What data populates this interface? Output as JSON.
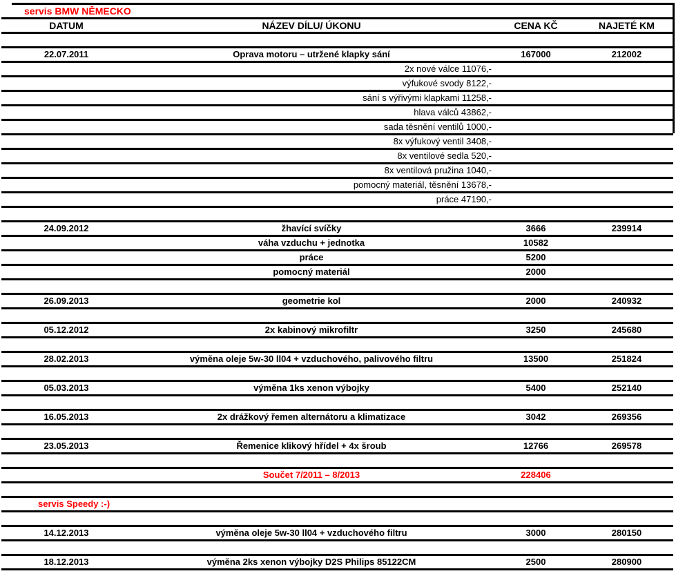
{
  "colors": {
    "background": "#ffffff",
    "text": "#000000",
    "line": "#000000",
    "accent_red": "#ff0000"
  },
  "rows": [
    {
      "type": "title",
      "text": "servis BMW NĚMECKO"
    },
    {
      "type": "header",
      "cells": [
        "DATUM",
        "NÁZEV DÍLU/ ÚKONU",
        "CENA KČ",
        "NAJETÉ KM"
      ]
    },
    {
      "type": "spacer"
    },
    {
      "type": "item",
      "datum": "22.07.2011",
      "nazev": "Oprava motoru – utržené klapky sání",
      "cena": "167000",
      "km": "212002"
    },
    {
      "type": "detail",
      "text": "2x nové válce 11076,-"
    },
    {
      "type": "detail",
      "text": "výfukové svody 8122,-"
    },
    {
      "type": "detail",
      "text": "sání s výřivými klapkami 11258,-"
    },
    {
      "type": "detail",
      "text": "hlava válců 43862,-"
    },
    {
      "type": "detail",
      "text": "sada těsnění ventilů 1000,-"
    },
    {
      "type": "detail",
      "text": "8x výfukový ventil 3408,-"
    },
    {
      "type": "detail",
      "text": "8x ventilové sedla 520,-"
    },
    {
      "type": "detail",
      "text": "8x ventilová pružina 1040,-"
    },
    {
      "type": "detail",
      "text": "pomocný materiál, těsnění 13678,-"
    },
    {
      "type": "detail",
      "text": "práce 47190,-"
    },
    {
      "type": "spacer"
    },
    {
      "type": "item",
      "datum": "24.09.2012",
      "nazev": "žhavící svíčky",
      "cena": "3666",
      "km": "239914"
    },
    {
      "type": "item",
      "datum": "",
      "nazev": "váha vzduchu + jednotka",
      "cena": "10582",
      "km": ""
    },
    {
      "type": "item",
      "datum": "",
      "nazev": "práce",
      "cena": "5200",
      "km": ""
    },
    {
      "type": "item",
      "datum": "",
      "nazev": "pomocný materiál",
      "cena": "2000",
      "km": ""
    },
    {
      "type": "spacer"
    },
    {
      "type": "item",
      "datum": "26.09.2013",
      "nazev": "geometrie kol",
      "cena": "2000",
      "km": "240932"
    },
    {
      "type": "spacer"
    },
    {
      "type": "item",
      "datum": "05.12.2012",
      "nazev": "2x kabinový mikrofiltr",
      "cena": "3250",
      "km": "245680"
    },
    {
      "type": "spacer"
    },
    {
      "type": "item",
      "datum": "28.02.2013",
      "nazev": "výměna oleje 5w-30 ll04 + vzduchového, palivového filtru",
      "cena": "13500",
      "km": "251824"
    },
    {
      "type": "spacer"
    },
    {
      "type": "item",
      "datum": "05.03.2013",
      "nazev": "výměna 1ks xenon výbojky",
      "cena": "5400",
      "km": "252140"
    },
    {
      "type": "spacer"
    },
    {
      "type": "item",
      "datum": "16.05.2013",
      "nazev": "2x drážkový řemen alternátoru a klimatizace",
      "cena": "3042",
      "km": "269356"
    },
    {
      "type": "spacer"
    },
    {
      "type": "item",
      "datum": "23.05.2013",
      "nazev": "Řemenice klikový hřídel + 4x šroub",
      "cena": "12766",
      "km": "269578"
    },
    {
      "type": "spacer"
    },
    {
      "type": "total",
      "nazev": "Součet 7/2011 – 8/2013",
      "cena": "228406"
    },
    {
      "type": "spacer"
    },
    {
      "type": "subtitle",
      "text": "servis Speedy :-)"
    },
    {
      "type": "spacer"
    },
    {
      "type": "item",
      "datum": "14.12.2013",
      "nazev": "výměna oleje 5w-30 ll04 + vzduchového filtru",
      "cena": "3000",
      "km": "280150"
    },
    {
      "type": "spacer"
    },
    {
      "type": "item",
      "datum": "18.12.2013",
      "nazev": "výměna 2ks xenon výbojky D2S Philips 85122CM",
      "cena": "2500",
      "km": "280900"
    }
  ]
}
